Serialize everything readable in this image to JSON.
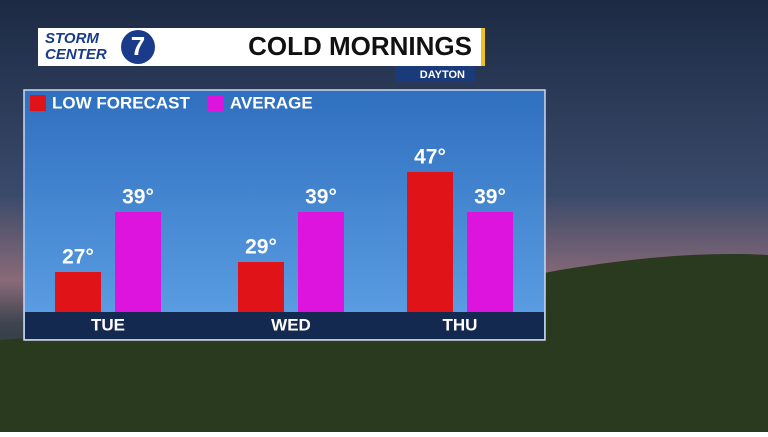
{
  "branding": {
    "line1": "STORM",
    "line2": "CENTER",
    "number": "7"
  },
  "chart_data": {
    "type": "bar",
    "title": "COLD MORNINGS",
    "subtitle": "DAYTON",
    "categories": [
      "TUE",
      "WED",
      "THU"
    ],
    "series": [
      {
        "name": "LOW FORECAST",
        "color": "#e01418",
        "values": [
          27,
          29,
          47
        ],
        "value_labels": [
          "27°",
          "29°",
          "47°"
        ]
      },
      {
        "name": "AVERAGE",
        "color": "#dd14dd",
        "values": [
          39,
          39,
          39
        ],
        "value_labels": [
          "39°",
          "39°",
          "39°"
        ]
      }
    ],
    "ylim": [
      19,
      61
    ],
    "grid": false,
    "legend": "top-left"
  }
}
